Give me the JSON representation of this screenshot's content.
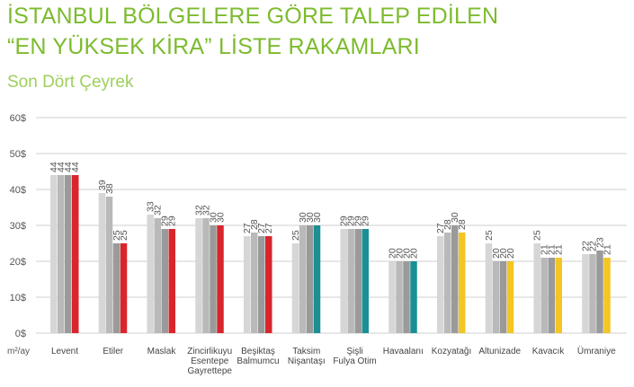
{
  "header": {
    "title_line1": "İSTANBUL BÖLGELERE GÖRE TALEP EDİLEN",
    "title_line2": "“EN YÜKSEK KİRA” LİSTE RAKAMLARI",
    "subtitle": "Son Dört Çeyrek"
  },
  "colors": {
    "title": "#7dbb2e",
    "grid": "#cfcfcf",
    "series_grays": [
      "#d6d6d6",
      "#b9b9b9",
      "#9a9a9a"
    ],
    "red": "#d8262c",
    "teal": "#1a8f94",
    "yellow": "#f3c623"
  },
  "chart_data": {
    "type": "bar",
    "ylim": [
      0,
      60
    ],
    "yticks": [
      "0$",
      "10$",
      "20$",
      "30$",
      "40$",
      "50$",
      "60$"
    ],
    "ylabel": "m²/ay",
    "grid": true,
    "categories": [
      [
        "Levent"
      ],
      [
        "Etiler"
      ],
      [
        "Maslak"
      ],
      [
        "Zincirlikuyu",
        "Esentepe",
        "Gayrettepe"
      ],
      [
        "Beşiktaş",
        "Balmumcu"
      ],
      [
        "Taksim",
        "Nişantaşı"
      ],
      [
        "Şişli",
        "Fulya Otim"
      ],
      [
        "Havaalanı"
      ],
      [
        "Kozyatağı"
      ],
      [
        "Altunizade"
      ],
      [
        "Kavacık"
      ],
      [
        "Ümraniye"
      ]
    ],
    "values": [
      [
        44,
        44,
        44,
        44
      ],
      [
        39,
        38,
        25,
        25
      ],
      [
        33,
        32,
        29,
        29
      ],
      [
        32,
        32,
        30,
        30
      ],
      [
        27,
        28,
        27,
        27
      ],
      [
        25,
        30,
        30,
        30
      ],
      [
        29,
        29,
        29,
        29
      ],
      [
        20,
        20,
        20,
        20
      ],
      [
        27,
        28,
        30,
        28
      ],
      [
        25,
        20,
        20,
        20
      ],
      [
        25,
        21,
        21,
        21
      ],
      [
        22,
        22,
        23,
        21
      ]
    ],
    "highlight_colors": [
      "red",
      "red",
      "red",
      "red",
      "red",
      "teal",
      "teal",
      "teal",
      "yellow",
      "yellow",
      "yellow",
      "yellow"
    ]
  }
}
